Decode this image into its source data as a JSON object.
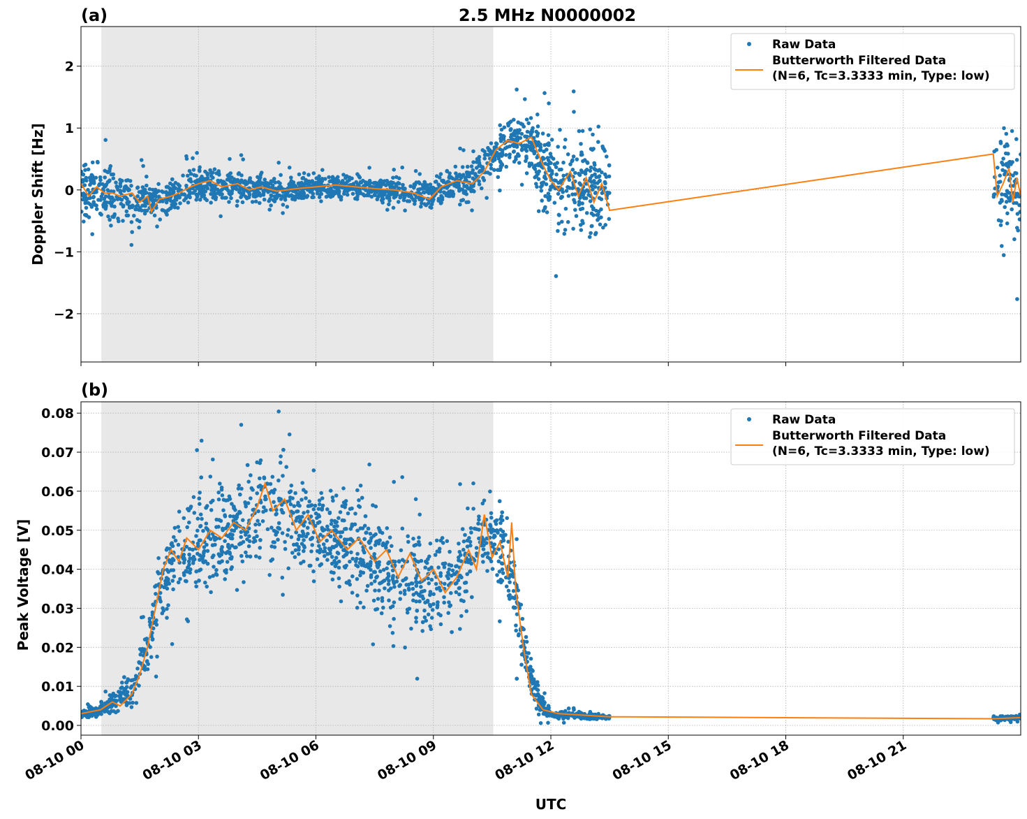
{
  "chart_data": [
    {
      "type": "scatter",
      "panel_label": "(a)",
      "title": "2.5 MHz N0000002",
      "xlabel": "",
      "ylabel": "Doppler Shift [Hz]",
      "xlim_hours": [
        0,
        24
      ],
      "ylim": [
        -2.78,
        2.64
      ],
      "yticks": [
        -2,
        -1,
        0,
        1,
        2
      ],
      "ytick_labels": [
        "−2",
        "−1",
        "0",
        "1",
        "2"
      ],
      "xtick_hours": [
        0,
        3,
        6,
        9,
        12,
        15,
        18,
        21
      ],
      "xtick_labels": [
        "08-10 00",
        "08-10 03",
        "08-10 06",
        "08-10 09",
        "08-10 12",
        "08-10 15",
        "08-10 18",
        "08-10 21"
      ],
      "grid": true,
      "shaded_region_hours": [
        0.52,
        10.53
      ],
      "legend": {
        "placement": "top-right",
        "entries": [
          "Raw Data",
          "Butterworth Filtered Data",
          "(N=6, Tc=3.3333 min, Type: low)"
        ]
      },
      "raw_data_envelope": {
        "columns": [
          "hour",
          "center",
          "half_spread"
        ],
        "segments": [
          [
            [
              0,
              0.0,
              0.75
            ],
            [
              0.5,
              -0.05,
              0.6
            ],
            [
              1,
              -0.1,
              0.45
            ],
            [
              1.5,
              -0.2,
              0.4
            ],
            [
              2,
              -0.15,
              0.3
            ],
            [
              2.5,
              -0.05,
              0.3
            ],
            [
              3,
              0.1,
              0.3
            ],
            [
              4,
              0.05,
              0.28
            ],
            [
              5,
              -0.02,
              0.25
            ],
            [
              6,
              0.05,
              0.22
            ],
            [
              7,
              0.05,
              0.2
            ],
            [
              8,
              0.0,
              0.22
            ],
            [
              8.5,
              -0.05,
              0.25
            ],
            [
              9,
              -0.05,
              0.3
            ],
            [
              9.5,
              0.1,
              0.3
            ],
            [
              10,
              0.15,
              0.35
            ],
            [
              10.5,
              0.6,
              0.4
            ],
            [
              11,
              0.8,
              0.45
            ],
            [
              11.5,
              0.7,
              0.55
            ],
            [
              11.8,
              0.3,
              0.8
            ],
            [
              12.5,
              0.1,
              0.95
            ],
            [
              13.5,
              0.0,
              1.05
            ]
          ],
          [
            [
              23.3,
              0.2,
              1.0
            ],
            [
              24,
              0.0,
              1.0
            ]
          ]
        ]
      },
      "filtered_series": {
        "name": "Butterworth Filtered Data",
        "points": [
          [
            0,
            0.1
          ],
          [
            0.2,
            -0.1
          ],
          [
            0.4,
            0.05
          ],
          [
            0.6,
            -0.05
          ],
          [
            0.8,
            -0.05
          ],
          [
            1,
            -0.1
          ],
          [
            1.3,
            -0.05
          ],
          [
            1.5,
            -0.2
          ],
          [
            1.7,
            -0.1
          ],
          [
            1.8,
            -0.35
          ],
          [
            2,
            -0.15
          ],
          [
            2.3,
            -0.1
          ],
          [
            2.5,
            -0.05
          ],
          [
            2.8,
            0.05
          ],
          [
            3,
            0.1
          ],
          [
            3.3,
            0.15
          ],
          [
            3.6,
            0.05
          ],
          [
            4,
            0.1
          ],
          [
            4.3,
            0.0
          ],
          [
            4.6,
            0.05
          ],
          [
            5,
            -0.02
          ],
          [
            5.5,
            0.02
          ],
          [
            6,
            0.05
          ],
          [
            6.5,
            0.08
          ],
          [
            7,
            0.05
          ],
          [
            7.5,
            0.02
          ],
          [
            8,
            0.0
          ],
          [
            8.5,
            -0.05
          ],
          [
            8.9,
            -0.15
          ],
          [
            9.2,
            0.05
          ],
          [
            9.6,
            0.15
          ],
          [
            10,
            0.1
          ],
          [
            10.3,
            0.3
          ],
          [
            10.6,
            0.65
          ],
          [
            10.9,
            0.8
          ],
          [
            11.2,
            0.75
          ],
          [
            11.5,
            0.85
          ],
          [
            11.8,
            0.4
          ],
          [
            12,
            0.15
          ],
          [
            12.2,
            0.0
          ],
          [
            12.5,
            0.3
          ],
          [
            12.7,
            -0.1
          ],
          [
            12.9,
            0.2
          ],
          [
            13.1,
            -0.2
          ],
          [
            13.3,
            0.1
          ],
          [
            13.5,
            -0.33
          ],
          [
            23.3,
            0.58
          ],
          [
            23.4,
            -0.1
          ],
          [
            23.55,
            0.1
          ],
          [
            23.7,
            0.35
          ],
          [
            23.8,
            -0.2
          ],
          [
            23.9,
            0.2
          ],
          [
            24,
            -0.1
          ]
        ]
      },
      "colors": {
        "raw": "#1f77b4",
        "filtered": "#ff7f0e",
        "shade": "#e8e8e8",
        "grid": "#b0b0b0"
      }
    },
    {
      "type": "scatter",
      "panel_label": "(b)",
      "title": "",
      "xlabel": "UTC",
      "ylabel": "Peak Voltage [V]",
      "xlim_hours": [
        0,
        24
      ],
      "ylim": [
        -0.0025,
        0.0829
      ],
      "yticks": [
        0,
        0.01,
        0.02,
        0.03,
        0.04,
        0.05,
        0.06,
        0.07,
        0.08
      ],
      "ytick_labels": [
        "0.00",
        "0.01",
        "0.02",
        "0.03",
        "0.04",
        "0.05",
        "0.06",
        "0.07",
        "0.08"
      ],
      "xtick_hours": [
        0,
        3,
        6,
        9,
        12,
        15,
        18,
        21
      ],
      "xtick_labels": [
        "08-10 00",
        "08-10 03",
        "08-10 06",
        "08-10 09",
        "08-10 12",
        "08-10 15",
        "08-10 18",
        "08-10 21"
      ],
      "grid": true,
      "shaded_region_hours": [
        0.52,
        10.53
      ],
      "legend": {
        "placement": "top-right",
        "entries": [
          "Raw Data",
          "Butterworth Filtered Data",
          "(N=6, Tc=3.3333 min, Type: low)"
        ]
      },
      "raw_data_envelope": {
        "columns": [
          "hour",
          "center",
          "half_spread"
        ],
        "segments": [
          [
            [
              0,
              0.003,
              0.001
            ],
            [
              0.5,
              0.004,
              0.002
            ],
            [
              1,
              0.007,
              0.004
            ],
            [
              1.3,
              0.009,
              0.005
            ],
            [
              1.7,
              0.02,
              0.008
            ],
            [
              2,
              0.035,
              0.011
            ],
            [
              2.5,
              0.045,
              0.013
            ],
            [
              3,
              0.047,
              0.014
            ],
            [
              4,
              0.05,
              0.014
            ],
            [
              4.7,
              0.056,
              0.014
            ],
            [
              5.5,
              0.053,
              0.014
            ],
            [
              6,
              0.05,
              0.015
            ],
            [
              7,
              0.045,
              0.015
            ],
            [
              8,
              0.04,
              0.015
            ],
            [
              9,
              0.036,
              0.014
            ],
            [
              9.5,
              0.036,
              0.013
            ],
            [
              10,
              0.045,
              0.013
            ],
            [
              10.4,
              0.05,
              0.012
            ],
            [
              10.8,
              0.045,
              0.012
            ],
            [
              11.1,
              0.032,
              0.01
            ],
            [
              11.4,
              0.015,
              0.007
            ],
            [
              11.7,
              0.006,
              0.003
            ],
            [
              12,
              0.003,
              0.0015
            ],
            [
              13.5,
              0.002,
              0.0006
            ]
          ],
          [
            [
              23.3,
              0.0017,
              0.0006
            ],
            [
              24,
              0.002,
              0.0006
            ]
          ]
        ]
      },
      "filtered_series": {
        "name": "Butterworth Filtered Data",
        "points": [
          [
            0,
            0.003
          ],
          [
            0.5,
            0.004
          ],
          [
            0.8,
            0.006
          ],
          [
            1,
            0.005
          ],
          [
            1.3,
            0.008
          ],
          [
            1.5,
            0.013
          ],
          [
            1.7,
            0.02
          ],
          [
            1.9,
            0.03
          ],
          [
            2.1,
            0.04
          ],
          [
            2.3,
            0.045
          ],
          [
            2.5,
            0.042
          ],
          [
            2.7,
            0.048
          ],
          [
            3,
            0.045
          ],
          [
            3.3,
            0.05
          ],
          [
            3.6,
            0.048
          ],
          [
            3.9,
            0.052
          ],
          [
            4.2,
            0.05
          ],
          [
            4.5,
            0.056
          ],
          [
            4.7,
            0.062
          ],
          [
            4.9,
            0.055
          ],
          [
            5.2,
            0.058
          ],
          [
            5.5,
            0.05
          ],
          [
            5.8,
            0.054
          ],
          [
            6.1,
            0.047
          ],
          [
            6.4,
            0.05
          ],
          [
            6.8,
            0.045
          ],
          [
            7.1,
            0.048
          ],
          [
            7.5,
            0.042
          ],
          [
            7.8,
            0.045
          ],
          [
            8.1,
            0.038
          ],
          [
            8.4,
            0.044
          ],
          [
            8.7,
            0.037
          ],
          [
            9.0,
            0.04
          ],
          [
            9.3,
            0.034
          ],
          [
            9.6,
            0.038
          ],
          [
            9.9,
            0.045
          ],
          [
            10.1,
            0.04
          ],
          [
            10.3,
            0.054
          ],
          [
            10.5,
            0.043
          ],
          [
            10.7,
            0.047
          ],
          [
            10.9,
            0.038
          ],
          [
            11.0,
            0.052
          ],
          [
            11.1,
            0.035
          ],
          [
            11.3,
            0.02
          ],
          [
            11.5,
            0.008
          ],
          [
            11.8,
            0.004
          ],
          [
            12.2,
            0.003
          ],
          [
            13.5,
            0.0022
          ],
          [
            23.3,
            0.0017
          ],
          [
            24,
            0.002
          ]
        ]
      },
      "colors": {
        "raw": "#1f77b4",
        "filtered": "#ff7f0e",
        "shade": "#e8e8e8",
        "grid": "#b0b0b0"
      }
    }
  ]
}
